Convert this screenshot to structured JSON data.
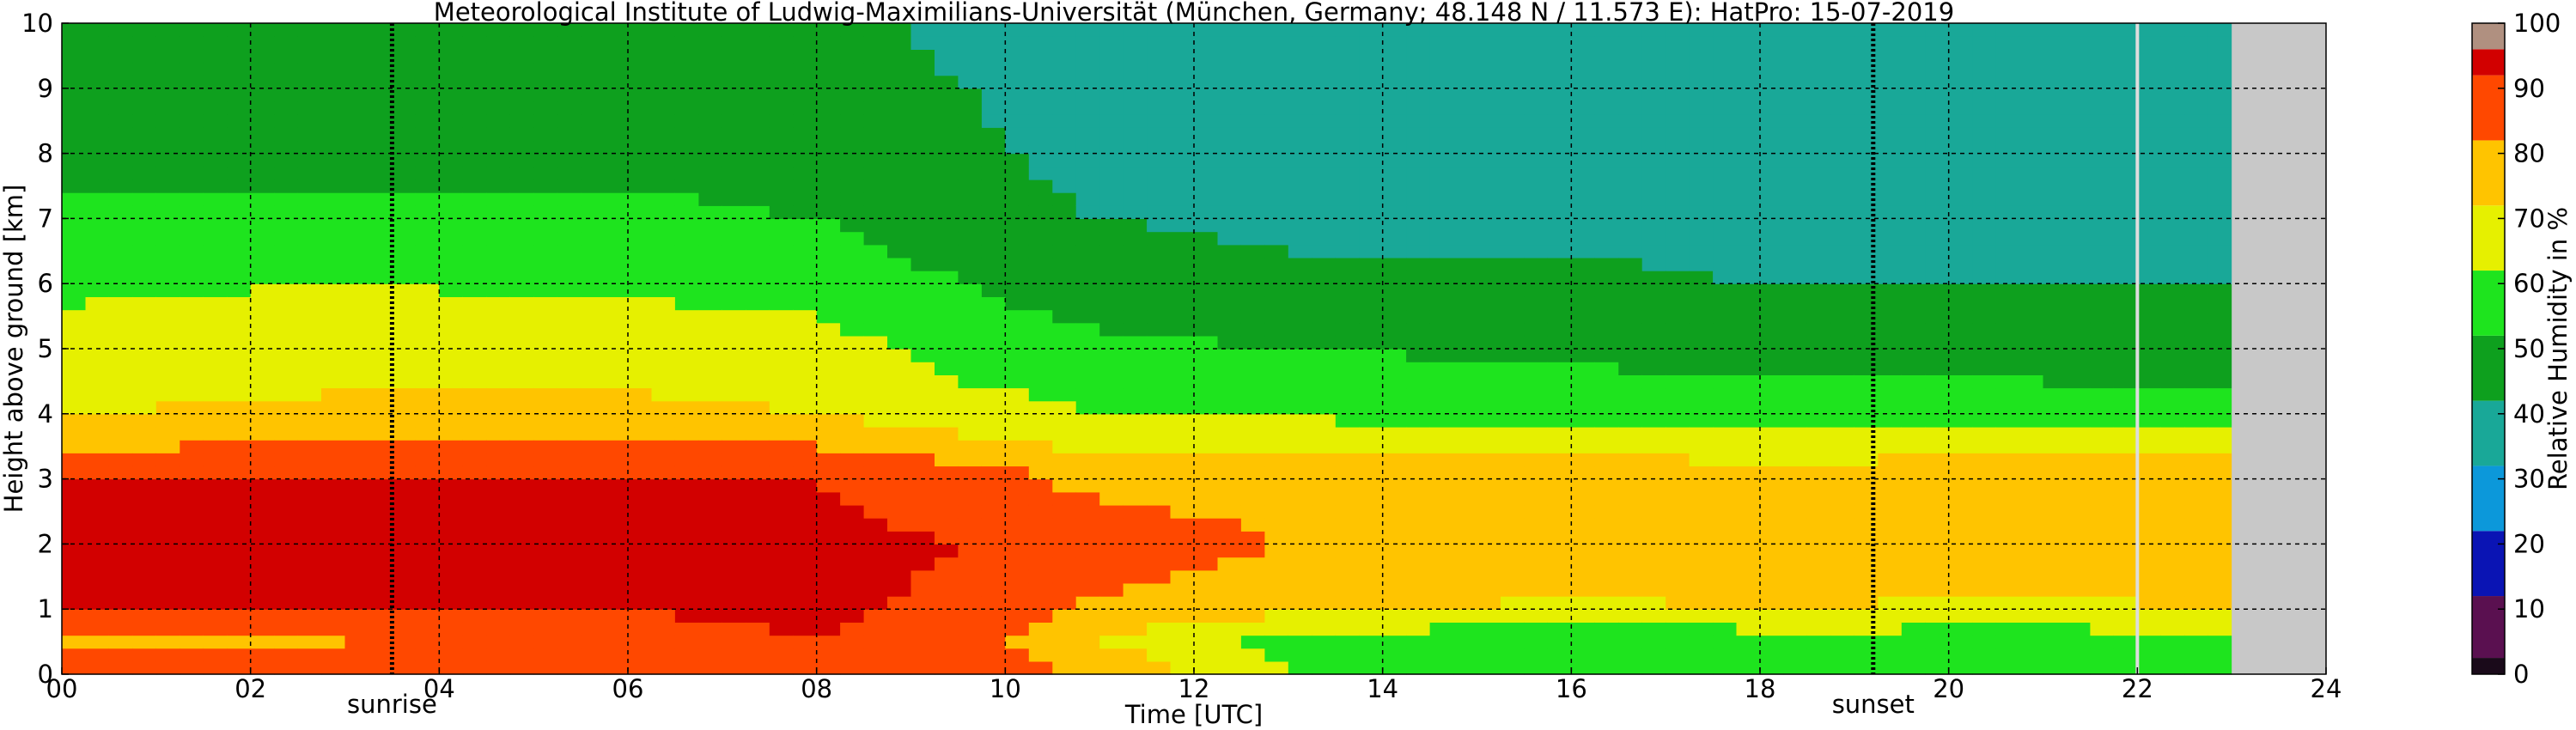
{
  "chart_data": {
    "type": "heatmap",
    "title": "Meteorological Institute of Ludwig-Maximilians-Universität (München, Germany; 48.148 N / 11.573 E):    HatPro: 15-07-2019",
    "xlabel": "Time [UTC]",
    "ylabel": "Height above ground [km]",
    "xlim": [
      0,
      24
    ],
    "ylim": [
      0,
      10
    ],
    "x_ticks": [
      0,
      2,
      4,
      6,
      8,
      10,
      12,
      14,
      16,
      18,
      20,
      22,
      24
    ],
    "x_tick_labels": [
      "00",
      "02",
      "04",
      "06",
      "08",
      "10",
      "12",
      "14",
      "16",
      "18",
      "20",
      "22",
      "24"
    ],
    "y_ticks": [
      0,
      1,
      2,
      3,
      4,
      5,
      6,
      7,
      8,
      9,
      10
    ],
    "y_tick_labels": [
      "0",
      "1",
      "2",
      "3",
      "4",
      "5",
      "6",
      "7",
      "8",
      "9",
      "10"
    ],
    "grid": true,
    "data_end_hour": 23.0,
    "no_data_color": "#c8c8c8",
    "markers": [
      {
        "label": "sunrise",
        "time": 3.5
      },
      {
        "label": "sunset",
        "time": 19.2
      }
    ],
    "extra_vertical_line": 22.0,
    "colorbar": {
      "label": "Relative Humidity in %",
      "ticks": [
        0,
        10,
        20,
        30,
        40,
        50,
        60,
        70,
        80,
        90,
        100
      ],
      "tick_labels": [
        "0",
        "10",
        "20",
        "30",
        "40",
        "50",
        "60",
        "70",
        "80",
        "90",
        "100"
      ],
      "bands": [
        {
          "from": 0,
          "to": 2.5,
          "color": "#1a0a1a"
        },
        {
          "from": 2.5,
          "to": 12,
          "color": "#5a1050"
        },
        {
          "from": 12,
          "to": 22,
          "color": "#0a14b4"
        },
        {
          "from": 22,
          "to": 32,
          "color": "#0c98da"
        },
        {
          "from": 32,
          "to": 42,
          "color": "#19a898"
        },
        {
          "from": 42,
          "to": 52,
          "color": "#0ea01e"
        },
        {
          "from": 52,
          "to": 62,
          "color": "#1ee41e"
        },
        {
          "from": 62,
          "to": 72,
          "color": "#e6f000"
        },
        {
          "from": 72,
          "to": 82,
          "color": "#ffc400"
        },
        {
          "from": 82,
          "to": 92,
          "color": "#ff4800"
        },
        {
          "from": 92,
          "to": 96,
          "color": "#d20000"
        },
        {
          "from": 96,
          "to": 100,
          "color": "#b09080"
        }
      ]
    },
    "humidity_profiles": {
      "time_hours": [
        0,
        3,
        6,
        8,
        9.6,
        11,
        13,
        16,
        18,
        21,
        23
      ],
      "height_km": [
        0,
        0.5,
        1,
        2,
        3,
        3.5,
        4,
        5,
        6,
        7,
        8,
        9,
        10
      ],
      "rh_percent": [
        [
          85,
          80,
          92,
          93,
          92,
          80,
          72,
          66,
          60,
          54,
          48,
          46,
          44
        ],
        [
          85,
          82,
          93,
          94,
          93,
          85,
          74,
          68,
          62,
          54,
          50,
          47,
          46
        ],
        [
          88,
          86,
          93,
          94,
          93,
          86,
          74,
          68,
          60,
          54,
          50,
          47,
          45
        ],
        [
          92,
          92,
          94,
          94,
          92,
          82,
          72,
          66,
          58,
          52,
          48,
          46,
          44
        ],
        [
          88,
          86,
          90,
          92,
          88,
          76,
          66,
          58,
          52,
          46,
          44,
          42,
          40
        ],
        [
          80,
          72,
          80,
          90,
          78,
          70,
          62,
          54,
          46,
          42,
          38,
          36,
          34
        ],
        [
          62,
          58,
          74,
          82,
          76,
          72,
          60,
          52,
          44,
          40,
          38,
          35,
          32
        ],
        [
          54,
          52,
          70,
          82,
          78,
          70,
          58,
          50,
          44,
          40,
          37,
          34,
          32
        ],
        [
          58,
          56,
          72,
          80,
          76,
          68,
          58,
          48,
          42,
          38,
          36,
          34,
          32
        ],
        [
          60,
          56,
          70,
          80,
          78,
          70,
          56,
          48,
          42,
          38,
          36,
          34,
          32
        ],
        [
          62,
          58,
          72,
          82,
          78,
          70,
          56,
          46,
          42,
          38,
          36,
          34,
          32
        ]
      ]
    }
  }
}
